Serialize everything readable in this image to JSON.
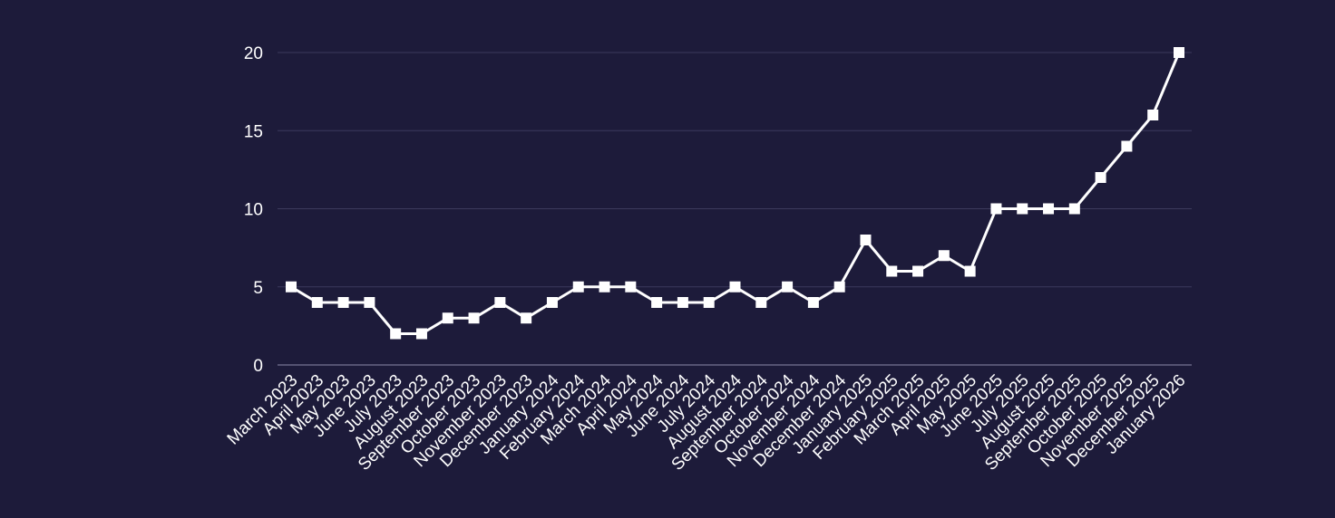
{
  "colors": {
    "background": "#1d1b3a",
    "series": "#ffffff",
    "grid": "#3c3a5c",
    "text": "#ffffff"
  },
  "chart_data": {
    "type": "line",
    "title": "",
    "xlabel": "",
    "ylabel": "",
    "ylim": [
      0,
      20
    ],
    "yticks": [
      0,
      5,
      10,
      15,
      20
    ],
    "grid": true,
    "legend": "none",
    "marker": "square",
    "categories": [
      "March 2023",
      "April 2023",
      "May 2023",
      "June 2023",
      "July 2023",
      "August 2023",
      "September 2023",
      "October 2023",
      "November 2023",
      "December 2023",
      "January 2024",
      "February 2024",
      "March 2024",
      "April 2024",
      "May 2024",
      "June 2024",
      "July 2024",
      "August 2024",
      "September 2024",
      "October 2024",
      "November 2024",
      "December 2024",
      "January 2025",
      "February 2025",
      "March 2025",
      "April 2025",
      "May 2025",
      "June 2025",
      "July 2025",
      "August 2025",
      "September 2025",
      "October 2025",
      "November 2025",
      "December 2025",
      "January 2026"
    ],
    "series": [
      {
        "values": [
          5,
          4,
          4,
          4,
          2,
          2,
          3,
          3,
          4,
          3,
          4,
          5,
          5,
          5,
          4,
          4,
          4,
          5,
          4,
          5,
          4,
          5,
          8,
          6,
          6,
          7,
          6,
          10,
          10,
          10,
          10,
          12,
          14,
          16,
          20
        ]
      }
    ]
  }
}
